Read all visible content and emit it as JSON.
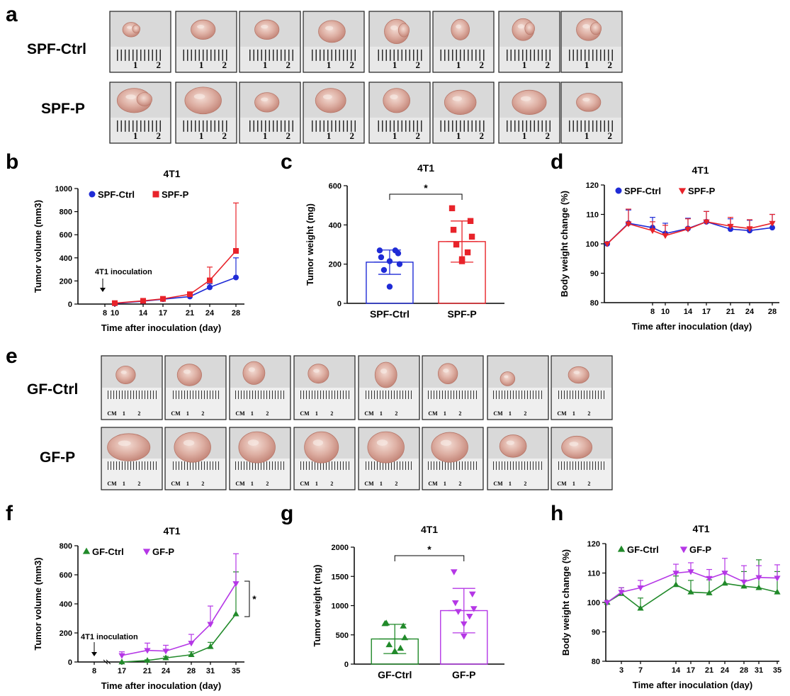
{
  "panel_labels": {
    "a": "a",
    "b": "b",
    "c": "c",
    "d": "d",
    "e": "e",
    "f": "f",
    "g": "g",
    "h": "h"
  },
  "photo_rows": {
    "spf_ctrl": "SPF-Ctrl",
    "spf_p": "SPF-P",
    "gf_ctrl": "GF-Ctrl",
    "gf_p": "GF-P",
    "ruler_unit": "CM",
    "ruler_1": "1",
    "ruler_2": "2"
  },
  "colors": {
    "blue": "#1f2bd6",
    "red": "#e8232a",
    "green": "#218a2a",
    "purple": "#b537e6"
  },
  "chart_data": [
    {
      "id": "b",
      "type": "line",
      "title": "4T1",
      "xlabel": "Time after inoculation (day)",
      "ylabel": "Tumor volume (mm3)",
      "ylim": [
        0,
        1000
      ],
      "yticks": [
        0,
        200,
        400,
        600,
        800,
        1000
      ],
      "x": [
        10,
        14,
        17,
        21,
        24,
        28
      ],
      "xticks": [
        8,
        10,
        14,
        17,
        21,
        24,
        28
      ],
      "annotation": "4T1 inoculation",
      "annotation_x": 8,
      "series": [
        {
          "name": "SPF-Ctrl",
          "color": "#1f2bd6",
          "marker": "circle",
          "values": [
            5,
            25,
            42,
            65,
            145,
            230
          ],
          "err": [
            3,
            6,
            8,
            12,
            30,
            170
          ]
        },
        {
          "name": "SPF-P",
          "color": "#e8232a",
          "marker": "square",
          "values": [
            8,
            28,
            45,
            85,
            205,
            460
          ],
          "err": [
            4,
            8,
            10,
            18,
            115,
            415
          ]
        }
      ]
    },
    {
      "id": "c",
      "type": "bar",
      "title": "4T1",
      "ylabel": "Tumor weight (mg)",
      "ylim": [
        0,
        600
      ],
      "yticks": [
        0,
        200,
        400,
        600
      ],
      "categories": [
        "SPF-Ctrl",
        "SPF-P"
      ],
      "significance": "*",
      "series": [
        {
          "name": "SPF-Ctrl",
          "color": "#1f2bd6",
          "marker": "circle",
          "mean": 210,
          "sd": 62,
          "points": [
            270,
            255,
            235,
            200,
            170,
            270,
            215,
            85
          ]
        },
        {
          "name": "SPF-P",
          "color": "#e8232a",
          "marker": "square",
          "mean": 315,
          "sd": 105,
          "points": [
            485,
            420,
            375,
            340,
            300,
            260,
            225,
            215
          ]
        }
      ]
    },
    {
      "id": "d",
      "type": "line",
      "title": "4T1",
      "xlabel": "Time after inoculation (day)",
      "ylabel": "Body weight change (%)",
      "ylim": [
        80,
        120
      ],
      "yticks": [
        80,
        90,
        100,
        110,
        120
      ],
      "x": [
        1,
        4,
        8,
        10,
        14,
        17,
        21,
        24,
        28
      ],
      "xticks": [
        8,
        10,
        14,
        17,
        21,
        24,
        28
      ],
      "series": [
        {
          "name": "SPF-Ctrl",
          "color": "#1f2bd6",
          "marker": "circle",
          "values": [
            100,
            107,
            105.5,
            103.5,
            105.2,
            107.5,
            105,
            104.5,
            105.5
          ],
          "err": [
            0,
            4.5,
            3.5,
            3.5,
            3.5,
            3.5,
            3.5,
            3.5,
            4.5
          ]
        },
        {
          "name": "SPF-P",
          "color": "#e8232a",
          "marker": "triangle-down",
          "values": [
            100,
            106.8,
            104.5,
            102.8,
            105,
            107.5,
            106,
            105.2,
            107
          ],
          "err": [
            0,
            5,
            3,
            3.5,
            3.5,
            3.5,
            3,
            3,
            3
          ]
        }
      ]
    },
    {
      "id": "f",
      "type": "line",
      "title": "4T1",
      "xlabel": "Time after inoculation (day)",
      "ylabel": "Tumor volume (mm3)",
      "ylim": [
        0,
        800
      ],
      "yticks": [
        0,
        200,
        400,
        600,
        800
      ],
      "x": [
        17,
        21,
        24,
        28,
        31,
        35
      ],
      "xticks": [
        8,
        17,
        21,
        24,
        28,
        31,
        35
      ],
      "annotation": "4T1 inoculation",
      "annotation_x": 8,
      "significance": "*",
      "series": [
        {
          "name": "GF-Ctrl",
          "color": "#218a2a",
          "marker": "triangle-up",
          "values": [
            0,
            10,
            28,
            50,
            105,
            330
          ],
          "err": [
            0,
            5,
            10,
            20,
            30,
            290
          ]
        },
        {
          "name": "GF-P",
          "color": "#b537e6",
          "marker": "triangle-down",
          "values": [
            45,
            80,
            75,
            130,
            260,
            540
          ],
          "err": [
            25,
            50,
            40,
            60,
            125,
            205
          ]
        }
      ]
    },
    {
      "id": "g",
      "type": "bar",
      "title": "4T1",
      "ylabel": "Tumor weight (mg)",
      "ylim": [
        0,
        2000
      ],
      "yticks": [
        0,
        500,
        1000,
        1500,
        2000
      ],
      "categories": [
        "GF-Ctrl",
        "GF-P"
      ],
      "significance": "*",
      "series": [
        {
          "name": "GF-Ctrl",
          "color": "#218a2a",
          "marker": "triangle-up",
          "mean": 430,
          "sd": 250,
          "points": [
            690,
            650,
            700,
            450,
            330,
            270,
            220,
            210
          ]
        },
        {
          "name": "GF-P",
          "color": "#b537e6",
          "marker": "triangle-down",
          "mean": 915,
          "sd": 380,
          "points": [
            1580,
            1200,
            1050,
            950,
            900,
            820,
            690,
            480
          ]
        }
      ]
    },
    {
      "id": "h",
      "type": "line",
      "title": "4T1",
      "xlabel": "Time after inoculation (day)",
      "ylabel": "Body weight change (%)",
      "ylim": [
        80,
        120
      ],
      "yticks": [
        80,
        90,
        100,
        110,
        120
      ],
      "x": [
        0,
        3,
        7,
        14,
        17,
        21,
        24,
        28,
        31,
        35
      ],
      "xticks": [
        3,
        7,
        14,
        17,
        21,
        24,
        28,
        31,
        35
      ],
      "series": [
        {
          "name": "GF-Ctrl",
          "color": "#218a2a",
          "marker": "triangle-up",
          "values": [
            100,
            103,
            98,
            106,
            103.5,
            103.2,
            106.5,
            105.5,
            105,
            103.5
          ],
          "err": [
            0,
            2,
            3.5,
            3,
            4,
            4.5,
            4,
            5,
            9.5,
            7
          ]
        },
        {
          "name": "GF-P",
          "color": "#b537e6",
          "marker": "triangle-down",
          "values": [
            100,
            103.5,
            105,
            110,
            110.5,
            108.2,
            110,
            107,
            108.5,
            108.3
          ],
          "err": [
            0,
            1.5,
            2.5,
            3,
            3,
            3,
            5,
            5.5,
            4,
            4.5
          ]
        }
      ]
    }
  ]
}
